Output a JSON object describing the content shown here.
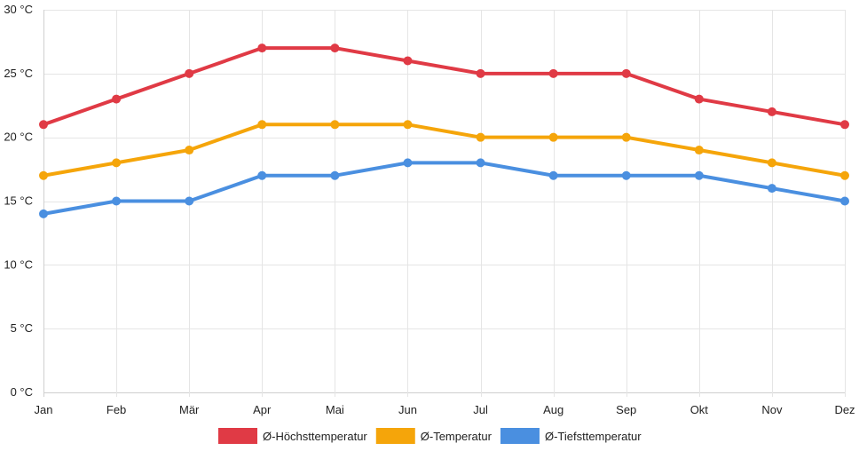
{
  "chart_data": {
    "type": "line",
    "title": "",
    "xlabel": "",
    "ylabel": "",
    "categories": [
      "Jan",
      "Feb",
      "Mär",
      "Apr",
      "Mai",
      "Jun",
      "Jul",
      "Aug",
      "Sep",
      "Okt",
      "Nov",
      "Dez"
    ],
    "ylim": [
      0,
      30
    ],
    "ytick_values": [
      0,
      5,
      10,
      15,
      20,
      25,
      30
    ],
    "ytick_labels": [
      "0 °C",
      "5 °C",
      "10 °C",
      "15 °C",
      "20 °C",
      "25 °C",
      "30 °C"
    ],
    "grid": true,
    "legend_position": "bottom-center",
    "series": [
      {
        "key": "high",
        "name": "Ø-Höchsttemperatur",
        "color": "#e03a45",
        "values": [
          21,
          23,
          25,
          27,
          27,
          26,
          25,
          25,
          25,
          23,
          22,
          21
        ]
      },
      {
        "key": "avg",
        "name": "Ø-Temperatur",
        "color": "#f5a50a",
        "values": [
          17,
          18,
          19,
          21,
          21,
          21,
          20,
          20,
          20,
          19,
          18,
          17
        ]
      },
      {
        "key": "low",
        "name": "Ø-Tiefsttemperatur",
        "color": "#4a8fe0",
        "values": [
          14,
          15,
          15,
          17,
          17,
          18,
          18,
          17,
          17,
          17,
          16,
          15
        ]
      }
    ]
  }
}
